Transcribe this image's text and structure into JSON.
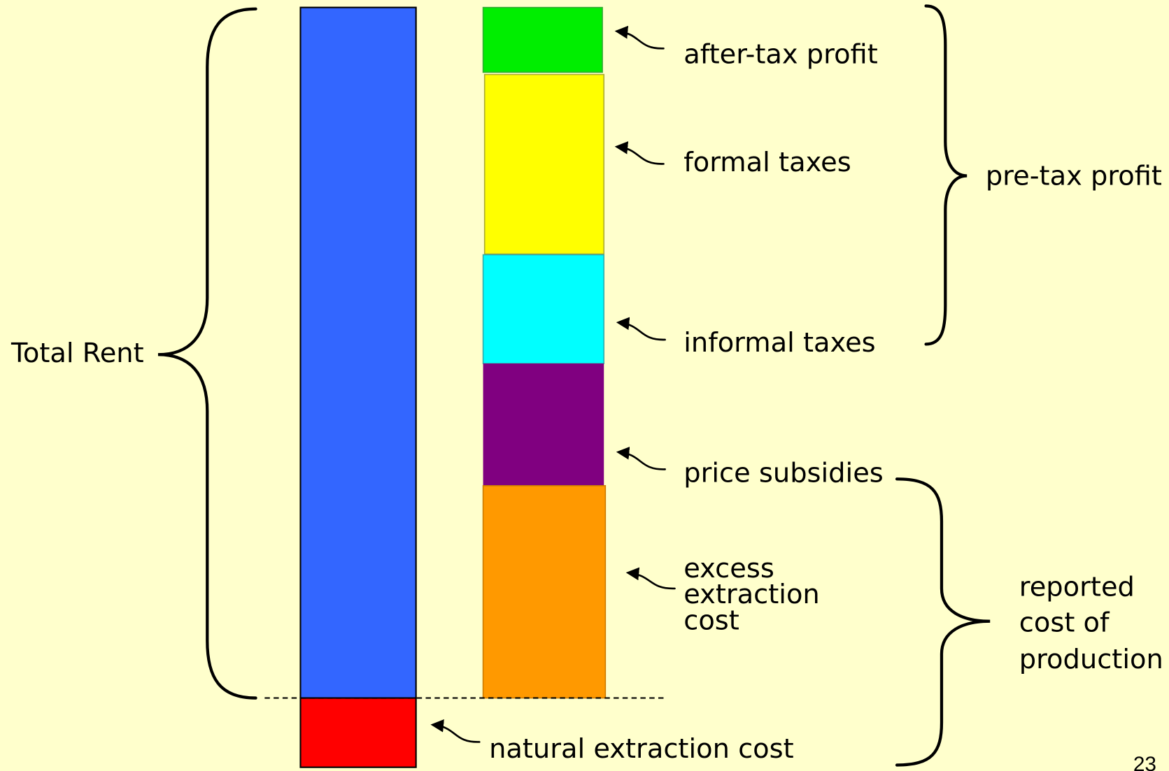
{
  "left_brace": {
    "label": "Total Rent"
  },
  "segments": [
    {
      "label": "after-tax profit"
    },
    {
      "label": "formal taxes"
    },
    {
      "label": "informal taxes"
    },
    {
      "label": "price subsidies"
    },
    {
      "label": [
        "excess",
        "extraction",
        "cost"
      ]
    },
    {
      "label": "natural extraction cost"
    }
  ],
  "right_braces": [
    {
      "label": "pre-tax profit"
    },
    {
      "label": [
        "reported",
        "cost of",
        "production"
      ]
    }
  ],
  "page_number": "23"
}
